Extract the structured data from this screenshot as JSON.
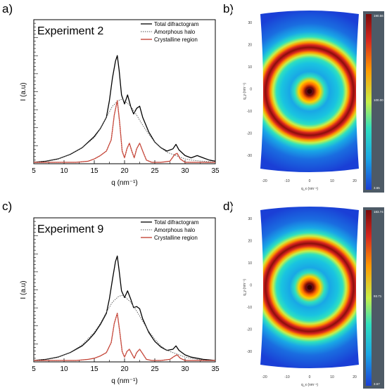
{
  "panels": {
    "a": "a)",
    "b": "b)",
    "c": "c)",
    "d": "d)"
  },
  "chart_data": [
    {
      "type": "line",
      "title": "Experiment 2",
      "xlabel": "q (nm⁻¹)",
      "ylabel": "I (a.u)",
      "xlim": [
        5,
        35
      ],
      "xticks": [
        "5",
        "10",
        "15",
        "20",
        "25",
        "30",
        "35"
      ],
      "legend_position": "top-right",
      "series": [
        {
          "name": "Total difractogram",
          "color": "#000000",
          "style": "solid",
          "x": [
            5,
            7,
            9,
            11,
            13,
            14,
            15,
            16,
            17,
            17.5,
            18,
            18.5,
            18.8,
            19.1,
            19.5,
            20,
            20.5,
            21,
            21.5,
            22,
            22.5,
            23,
            24,
            25,
            26,
            27,
            28,
            28.5,
            29,
            30,
            31,
            32,
            33,
            34,
            35
          ],
          "values": [
            0.0,
            0.01,
            0.03,
            0.07,
            0.13,
            0.18,
            0.23,
            0.3,
            0.4,
            0.55,
            0.75,
            0.9,
            0.95,
            0.82,
            0.6,
            0.52,
            0.6,
            0.5,
            0.43,
            0.48,
            0.5,
            0.4,
            0.27,
            0.18,
            0.13,
            0.1,
            0.12,
            0.16,
            0.11,
            0.06,
            0.04,
            0.06,
            0.04,
            0.02,
            0.01
          ]
        },
        {
          "name": "Amorphous halo",
          "color": "#555555",
          "style": "dotted",
          "x": [
            5,
            7,
            9,
            11,
            13,
            15,
            16,
            17,
            18,
            19,
            19.5,
            20,
            21,
            22,
            23,
            24,
            25,
            26,
            27,
            28,
            29,
            30,
            31,
            32,
            33,
            35
          ],
          "values": [
            0.0,
            0.01,
            0.03,
            0.07,
            0.13,
            0.22,
            0.3,
            0.4,
            0.5,
            0.55,
            0.56,
            0.55,
            0.5,
            0.42,
            0.33,
            0.25,
            0.18,
            0.13,
            0.09,
            0.07,
            0.05,
            0.03,
            0.02,
            0.015,
            0.01,
            0.0
          ]
        },
        {
          "name": "Crystalline region",
          "color": "#c0392b",
          "style": "solid",
          "x": [
            5,
            12,
            14,
            15,
            16,
            17,
            17.8,
            18.3,
            18.8,
            19.2,
            19.6,
            20,
            20.4,
            20.8,
            21.2,
            21.6,
            22,
            22.5,
            23,
            23.6,
            24.5,
            26,
            27.5,
            28.3,
            28.7,
            29.2,
            30,
            31,
            35
          ],
          "values": [
            0.0,
            0.0,
            0.01,
            0.03,
            0.06,
            0.1,
            0.2,
            0.42,
            0.55,
            0.35,
            0.1,
            0.04,
            0.12,
            0.17,
            0.1,
            0.04,
            0.12,
            0.17,
            0.1,
            0.02,
            0.0,
            0.0,
            0.01,
            0.07,
            0.08,
            0.03,
            0.0,
            0.0,
            0.0
          ]
        }
      ]
    },
    {
      "type": "line",
      "title": "Experiment 9",
      "xlabel": "q (nm⁻¹)",
      "ylabel": "I (a.u)",
      "xlim": [
        5,
        35
      ],
      "xticks": [
        "5",
        "10",
        "15",
        "20",
        "25",
        "30",
        "35"
      ],
      "legend_position": "top-right",
      "series": [
        {
          "name": "Total difractogram",
          "color": "#000000",
          "style": "solid",
          "x": [
            5,
            7,
            9,
            11,
            13,
            14,
            15,
            16,
            17,
            17.5,
            18,
            18.5,
            18.8,
            19.1,
            19.5,
            20,
            20.5,
            21,
            21.5,
            22,
            22.5,
            23,
            24,
            25,
            26,
            27,
            28,
            28.5,
            29,
            30,
            31,
            32,
            33,
            34,
            35
          ],
          "values": [
            0.0,
            0.01,
            0.03,
            0.07,
            0.13,
            0.18,
            0.24,
            0.32,
            0.42,
            0.55,
            0.72,
            0.88,
            0.93,
            0.8,
            0.62,
            0.56,
            0.62,
            0.55,
            0.47,
            0.48,
            0.46,
            0.37,
            0.25,
            0.17,
            0.12,
            0.09,
            0.1,
            0.13,
            0.09,
            0.05,
            0.03,
            0.02,
            0.01,
            0.005,
            0.0
          ]
        },
        {
          "name": "Amorphous halo",
          "color": "#555555",
          "style": "dotted",
          "x": [
            5,
            7,
            9,
            11,
            13,
            15,
            16,
            17,
            18,
            19,
            19.5,
            20,
            21,
            22,
            23,
            24,
            25,
            26,
            27,
            28,
            29,
            30,
            31,
            32,
            33,
            35
          ],
          "values": [
            0.0,
            0.01,
            0.03,
            0.07,
            0.14,
            0.25,
            0.33,
            0.43,
            0.52,
            0.57,
            0.58,
            0.57,
            0.52,
            0.44,
            0.35,
            0.26,
            0.19,
            0.13,
            0.09,
            0.07,
            0.05,
            0.03,
            0.02,
            0.01,
            0.005,
            0.0
          ]
        },
        {
          "name": "Crystalline region",
          "color": "#c0392b",
          "style": "solid",
          "x": [
            5,
            12,
            14,
            15,
            16,
            17,
            17.8,
            18.3,
            18.8,
            19.2,
            19.6,
            20,
            20.4,
            20.8,
            21.2,
            21.6,
            22,
            22.5,
            23,
            23.6,
            24.5,
            26,
            27.5,
            28.3,
            28.7,
            29.2,
            30,
            31,
            35
          ],
          "values": [
            0.0,
            0.0,
            0.01,
            0.02,
            0.04,
            0.07,
            0.16,
            0.33,
            0.42,
            0.26,
            0.08,
            0.03,
            0.08,
            0.1,
            0.06,
            0.02,
            0.07,
            0.1,
            0.06,
            0.01,
            0.0,
            0.0,
            0.01,
            0.04,
            0.05,
            0.02,
            0.0,
            0.0,
            0.0
          ]
        }
      ]
    },
    {
      "type": "heatmap",
      "xlabel": "q_x (nm⁻¹)",
      "ylabel": "q_y (nm⁻¹)",
      "xlim": [
        -25,
        25
      ],
      "ylim": [
        -35,
        35
      ],
      "xticks": [
        "-20",
        "-10",
        "0",
        "10",
        "20"
      ],
      "yticks": [
        "30",
        "20",
        "10",
        "0",
        "-10",
        "-20",
        "-30"
      ],
      "colorbar": {
        "max": "190.56",
        "mid": "100.00",
        "min": "3.65"
      },
      "ring_radius_q": 18.8,
      "colors": [
        "#1a3fd6",
        "#19a7e6",
        "#2de0c0",
        "#c8f048",
        "#ff9a00",
        "#d7261e",
        "#7a0b0b"
      ]
    },
    {
      "type": "heatmap",
      "xlabel": "q_x (nm⁻¹)",
      "ylabel": "q_y (nm⁻¹)",
      "xlim": [
        -25,
        25
      ],
      "ylim": [
        -35,
        35
      ],
      "xticks": [
        "-20",
        "-10",
        "0",
        "10",
        "20"
      ],
      "yticks": [
        "30",
        "20",
        "10",
        "0",
        "-10",
        "-20",
        "-30"
      ],
      "colorbar": {
        "max": "183.74",
        "mid": "93.71",
        "min": "3.67"
      },
      "ring_radius_q": 18.8,
      "colors": [
        "#1a3fd6",
        "#19a7e6",
        "#2de0c0",
        "#c8f048",
        "#ff9a00",
        "#d7261e",
        "#7a0b0b"
      ]
    }
  ]
}
